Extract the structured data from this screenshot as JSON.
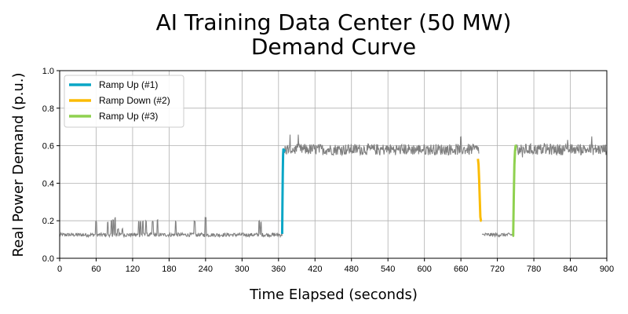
{
  "chart_data": {
    "type": "line",
    "title_line1": "AI Training Data Center (50 MW)",
    "title_line2": "Demand Curve",
    "xlabel": "Time Elapsed (seconds)",
    "ylabel": "Real Power Demand (p.u.)",
    "xlim": [
      0,
      900
    ],
    "ylim": [
      0,
      1.0
    ],
    "xticks": [
      0,
      60,
      120,
      180,
      240,
      300,
      360,
      420,
      480,
      540,
      600,
      660,
      720,
      780,
      840,
      900
    ],
    "yticks": [
      0.0,
      0.2,
      0.4,
      0.6,
      0.8,
      1.0
    ],
    "grid": true,
    "legend_position": "top-left",
    "baseline_color": "#808080",
    "base_profile": {
      "low_level": 0.125,
      "high_level": 0.58,
      "segments": [
        {
          "from": 0,
          "to": 366,
          "level": "low"
        },
        {
          "from": 370,
          "to": 690,
          "level": "high"
        },
        {
          "from": 695,
          "to": 746,
          "level": "low"
        },
        {
          "from": 750,
          "to": 900,
          "level": "high"
        }
      ],
      "spikes": [
        {
          "x": 60,
          "y": 0.2
        },
        {
          "x": 79,
          "y": 0.2
        },
        {
          "x": 85,
          "y": 0.21
        },
        {
          "x": 88,
          "y": 0.21
        },
        {
          "x": 91,
          "y": 0.22
        },
        {
          "x": 96,
          "y": 0.16
        },
        {
          "x": 103,
          "y": 0.16
        },
        {
          "x": 130,
          "y": 0.2
        },
        {
          "x": 133,
          "y": 0.2
        },
        {
          "x": 137,
          "y": 0.2
        },
        {
          "x": 142,
          "y": 0.2
        },
        {
          "x": 153,
          "y": 0.2
        },
        {
          "x": 161,
          "y": 0.21
        },
        {
          "x": 191,
          "y": 0.2
        },
        {
          "x": 222,
          "y": 0.2
        },
        {
          "x": 240,
          "y": 0.22
        },
        {
          "x": 328,
          "y": 0.2
        },
        {
          "x": 331,
          "y": 0.2
        }
      ]
    },
    "series": [
      {
        "name": "Ramp Up (#1)",
        "color": "#0aa6c6",
        "x": [
          366,
          366.5,
          367,
          367.5,
          368,
          369,
          370
        ],
        "y": [
          0.13,
          0.3,
          0.45,
          0.55,
          0.58,
          0.57,
          0.58
        ]
      },
      {
        "name": "Ramp Down (#2)",
        "color": "#fbbc05",
        "x": [
          688,
          689,
          690,
          691,
          692,
          693,
          694
        ],
        "y": [
          0.53,
          0.5,
          0.42,
          0.32,
          0.22,
          0.2,
          0.2
        ]
      },
      {
        "name": "Ramp Up (#3)",
        "color": "#8fd14f",
        "x": [
          745,
          746,
          747,
          748,
          749,
          750,
          751
        ],
        "y": [
          0.12,
          0.12,
          0.33,
          0.5,
          0.57,
          0.6,
          0.59
        ]
      }
    ]
  }
}
